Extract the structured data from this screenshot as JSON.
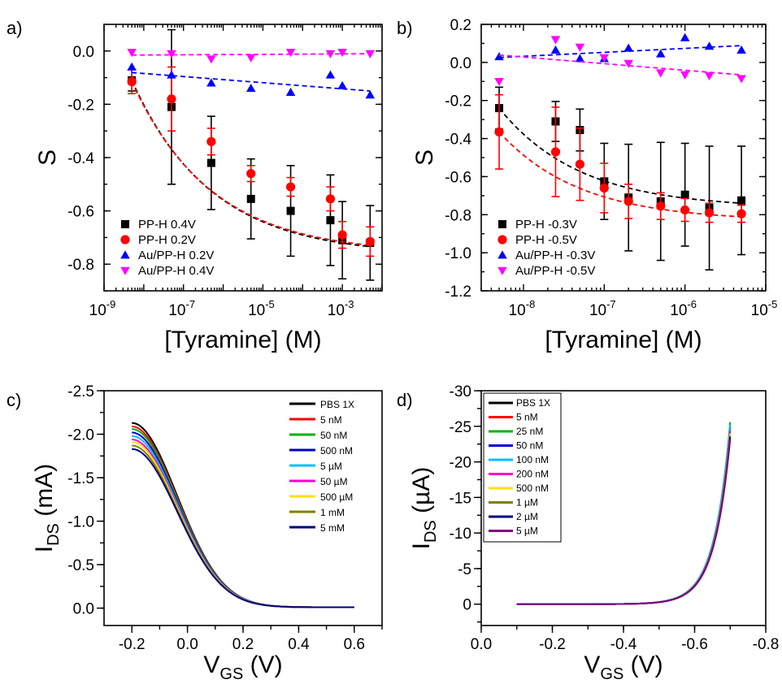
{
  "chart_data": [
    {
      "panel": "a)",
      "type": "scatter",
      "xscale": "log",
      "xlim": [
        1e-09,
        0.01
      ],
      "ylim": [
        -0.9,
        0.1
      ],
      "xticks": [
        1e-09,
        1e-07,
        1e-05,
        0.001
      ],
      "xtick_labels": [
        {
          "base": "10",
          "exp": "-9"
        },
        {
          "base": "10",
          "exp": "-7"
        },
        {
          "base": "10",
          "exp": "-5"
        },
        {
          "base": "10",
          "exp": "-3"
        }
      ],
      "yticks": [
        0.0,
        -0.2,
        -0.4,
        -0.6,
        -0.8
      ],
      "ytick_labels": [
        "0.0",
        "-0.2",
        "-0.4",
        "-0.6",
        "-0.8"
      ],
      "xlabel": "[Tyramine] (M)",
      "ylabel": "S",
      "legend_position": "bottom-left",
      "series": [
        {
          "name": "PP-H 0.4V",
          "color": "#000000",
          "marker": "square",
          "x": [
            5e-09,
            5e-08,
            5e-07,
            5e-06,
            5e-05,
            0.0005,
            0.001,
            0.005
          ],
          "y": [
            -0.11,
            -0.21,
            -0.42,
            -0.555,
            -0.6,
            -0.635,
            -0.71,
            -0.72
          ],
          "err": [
            0.04,
            0.29,
            0.175,
            0.15,
            0.17,
            0.17,
            0.145,
            0.14
          ],
          "fit": "exponential"
        },
        {
          "name": "PP-H 0.2V",
          "color": "#ff0000",
          "marker": "circle",
          "x": [
            5e-09,
            5e-08,
            5e-07,
            5e-06,
            5e-05,
            0.0005,
            0.001,
            0.005
          ],
          "y": [
            -0.115,
            -0.18,
            -0.34,
            -0.46,
            -0.51,
            -0.555,
            -0.69,
            -0.715
          ],
          "err": [
            0.045,
            0.12,
            0.05,
            0.03,
            0.035,
            0.045,
            0.05,
            0.055
          ],
          "fit": "exponential"
        },
        {
          "name": "Au/PP-H 0.2V",
          "color": "#0000ff",
          "marker": "triangle-up",
          "x": [
            5e-09,
            5e-08,
            5e-07,
            5e-06,
            5e-05,
            0.0005,
            0.001,
            0.005
          ],
          "y": [
            -0.06,
            -0.09,
            -0.12,
            -0.14,
            -0.155,
            -0.09,
            -0.13,
            -0.165
          ],
          "fit": "linear"
        },
        {
          "name": "Au/PP-H 0.4V",
          "color": "#ff00ff",
          "marker": "triangle-down",
          "x": [
            5e-09,
            5e-08,
            5e-07,
            5e-06,
            5e-05,
            0.0005,
            0.001,
            0.005
          ],
          "y": [
            -0.005,
            -0.01,
            -0.03,
            -0.025,
            -0.005,
            -0.01,
            -0.005,
            -0.01
          ],
          "fit": "linear"
        }
      ]
    },
    {
      "panel": "b)",
      "type": "scatter",
      "xscale": "log",
      "xlim": [
        3e-09,
        1e-05
      ],
      "ylim": [
        -1.2,
        0.2
      ],
      "xticks": [
        1e-08,
        1e-07,
        1e-06,
        1e-05
      ],
      "xtick_labels": [
        {
          "base": "10",
          "exp": "-8"
        },
        {
          "base": "10",
          "exp": "-7"
        },
        {
          "base": "10",
          "exp": "-6"
        },
        {
          "base": "10",
          "exp": "-5"
        }
      ],
      "yticks": [
        0.2,
        0.0,
        -0.2,
        -0.4,
        -0.6,
        -0.8,
        -1.0,
        -1.2
      ],
      "ytick_labels": [
        "0.2",
        "0.0",
        "-0.2",
        "-0.4",
        "-0.6",
        "-0.8",
        "-1.0",
        "-1.2"
      ],
      "xlabel": "[Tyramine] (M)",
      "ylabel": "S",
      "legend_position": "bottom-left",
      "series": [
        {
          "name": "PP-H -0.3V",
          "color": "#000000",
          "marker": "square",
          "x": [
            5e-09,
            2.5e-08,
            5e-08,
            1e-07,
            2e-07,
            5e-07,
            1e-06,
            2e-06,
            5e-06
          ],
          "y": [
            -0.24,
            -0.31,
            -0.355,
            -0.625,
            -0.71,
            -0.73,
            -0.695,
            -0.765,
            -0.725
          ],
          "err": [
            0.11,
            0.105,
            0.11,
            0.2,
            0.28,
            0.31,
            0.27,
            0.325,
            0.285
          ],
          "fit": "exponential"
        },
        {
          "name": "PP-H -0.5V",
          "color": "#ff0000",
          "marker": "circle",
          "x": [
            5e-09,
            2.5e-08,
            5e-08,
            1e-07,
            2e-07,
            5e-07,
            1e-06,
            2e-06,
            5e-06
          ],
          "y": [
            -0.365,
            -0.47,
            -0.535,
            -0.66,
            -0.73,
            -0.755,
            -0.775,
            -0.79,
            -0.795
          ],
          "err": [
            0.195,
            0.235,
            0.19,
            0.13,
            0.09,
            0.07,
            0.06,
            0.05,
            0.045
          ],
          "fit": "exponential"
        },
        {
          "name": "Au/PP-H -0.3V",
          "color": "#0000ff",
          "marker": "triangle-up",
          "x": [
            5e-09,
            2.5e-08,
            5e-08,
            1e-07,
            2e-07,
            5e-07,
            1e-06,
            2e-06,
            5e-06
          ],
          "y": [
            0.03,
            0.065,
            0.02,
            0.02,
            0.075,
            0.045,
            0.13,
            0.085,
            0.065
          ],
          "fit": "linear"
        },
        {
          "name": "Au/PP-H -0.5V",
          "color": "#ff00ff",
          "marker": "triangle-down",
          "x": [
            5e-09,
            2.5e-08,
            5e-08,
            1e-07,
            2e-07,
            5e-07,
            1e-06,
            2e-06,
            5e-06
          ],
          "y": [
            -0.1,
            0.12,
            0.08,
            0.025,
            -0.005,
            -0.055,
            -0.065,
            -0.07,
            -0.085
          ],
          "fit": "linear"
        }
      ]
    },
    {
      "panel": "c)",
      "type": "line",
      "xlim": [
        -0.3,
        0.7
      ],
      "ylim": [
        0.2,
        -2.5
      ],
      "xticks": [
        -0.2,
        0.0,
        0.2,
        0.4,
        0.6
      ],
      "xtick_labels": [
        "-0.2",
        "0.0",
        "0.2",
        "0.4",
        "0.6"
      ],
      "yticks": [
        0.0,
        -0.5,
        -1.0,
        -1.5,
        -2.0,
        -2.5
      ],
      "ytick_labels": [
        "0.0",
        "-0.5",
        "-1.0",
        "-1.5",
        "-2.0",
        "-2.5"
      ],
      "xlabel": {
        "main": "V",
        "sub": "GS",
        "unit": " (V)"
      },
      "ylabel": {
        "main": "I",
        "sub": "DS",
        "unit": " (mA)"
      },
      "legend_position": "top-right",
      "curve_model": "I = I0 * exp(-((V + 0.2)/0.23)^2), for V from -0.2 to 0.6",
      "series": [
        {
          "name": "PBS 1X",
          "color": "#000000",
          "I0": -2.12
        },
        {
          "name": "5 nM",
          "color": "#ff0000",
          "I0": -2.08
        },
        {
          "name": "50 nM",
          "color": "#00b400",
          "I0": -2.05
        },
        {
          "name": "500 nM",
          "color": "#0000cc",
          "I0": -2.01
        },
        {
          "name": "5 µM",
          "color": "#00bfff",
          "I0": -1.97
        },
        {
          "name": "50 µM",
          "color": "#ff00cc",
          "I0": -1.93
        },
        {
          "name": "500 µM",
          "color": "#ffe000",
          "I0": -1.9
        },
        {
          "name": "1 mM",
          "color": "#808000",
          "I0": -1.86
        },
        {
          "name": "5 mM",
          "color": "#000080",
          "I0": -1.82
        }
      ]
    },
    {
      "panel": "d)",
      "type": "line",
      "xlim": [
        0.0,
        -0.8
      ],
      "ylim": [
        3,
        -30
      ],
      "xticks": [
        0.0,
        -0.2,
        -0.4,
        -0.6,
        -0.8
      ],
      "xtick_labels": [
        "0.0",
        "-0.2",
        "-0.4",
        "-0.6",
        "-0.8"
      ],
      "yticks": [
        0,
        -5,
        -10,
        -15,
        -20,
        -25,
        -30
      ],
      "ytick_labels": [
        "0",
        "-5",
        "-10",
        "-15",
        "-20",
        "-25",
        "-30"
      ],
      "xlabel": {
        "main": "V",
        "sub": "GS",
        "unit": " (V)"
      },
      "ylabel": {
        "main": "I",
        "sub": "DS",
        "unit": " (µA)"
      },
      "legend_position": "top-left",
      "curve_model": "I = I0 * exp(-(0.7 - |V|)/0.045), for V from -0.1 to -0.7",
      "series": [
        {
          "name": "PBS 1X",
          "color": "#000000",
          "I0": -25.0
        },
        {
          "name": "5 nM",
          "color": "#ff0000",
          "I0": -24.6
        },
        {
          "name": "25 nM",
          "color": "#00b400",
          "I0": -25.6
        },
        {
          "name": "50 nM",
          "color": "#0000cc",
          "I0": -24.8
        },
        {
          "name": "100 nM",
          "color": "#00bfff",
          "I0": -25.2
        },
        {
          "name": "200 nM",
          "color": "#ff00cc",
          "I0": -24.3
        },
        {
          "name": "500 nM",
          "color": "#ffe000",
          "I0": -24.0
        },
        {
          "name": "1 µM",
          "color": "#808000",
          "I0": -23.7
        },
        {
          "name": "2 µM",
          "color": "#000080",
          "I0": -23.5
        },
        {
          "name": "5 µM",
          "color": "#800080",
          "I0": -23.2
        }
      ]
    }
  ]
}
